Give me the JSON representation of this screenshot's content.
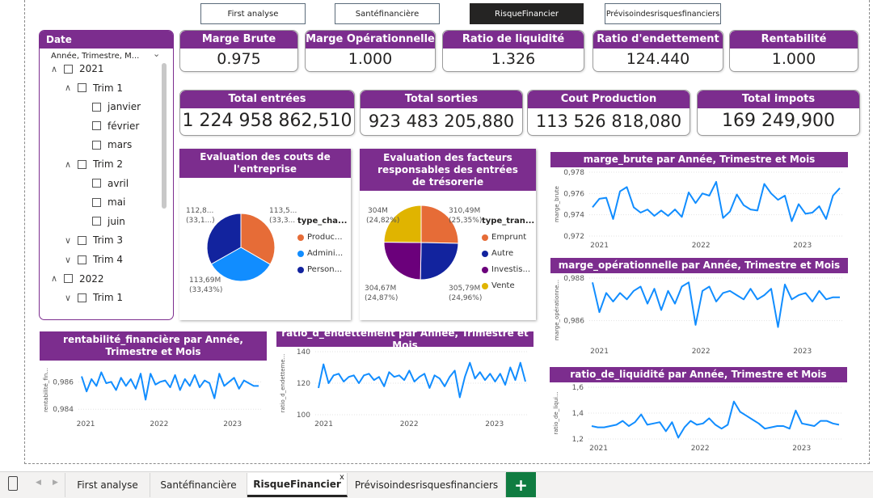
{
  "nav": {
    "buttons": [
      "First analyse",
      "Santéfinancière",
      "RisqueFinancier",
      "Prévisoindesrisquesfinanciers"
    ],
    "active_index": 2
  },
  "slicer": {
    "title": "Date",
    "hierarchy_label": "Année, Trimestre, M...",
    "items": [
      {
        "label": "2021",
        "caret": "^"
      },
      {
        "label": "Trim 1",
        "caret": "^"
      },
      {
        "label": "janvier",
        "caret": ""
      },
      {
        "label": "février",
        "caret": ""
      },
      {
        "label": "mars",
        "caret": ""
      },
      {
        "label": "Trim 2",
        "caret": "^"
      },
      {
        "label": "avril",
        "caret": ""
      },
      {
        "label": "mai",
        "caret": ""
      },
      {
        "label": "juin",
        "caret": ""
      },
      {
        "label": "Trim 3",
        "caret": "v"
      },
      {
        "label": "Trim 4",
        "caret": "v"
      },
      {
        "label": "2022",
        "caret": "^"
      },
      {
        "label": "Trim 1",
        "caret": "v"
      }
    ]
  },
  "kpis_top": [
    {
      "title": "Marge Brute",
      "value": "0.975"
    },
    {
      "title": "Marge Opérationnelle",
      "value": "1.000"
    },
    {
      "title": "Ratio de liquidité",
      "value": "1.326"
    },
    {
      "title": "Ratio d'endettement",
      "value": "124.440"
    },
    {
      "title": "Rentabilité financière",
      "value": "1.000"
    }
  ],
  "kpis_totals": [
    {
      "title": "Total entrées",
      "value": "1 224 958 862,510"
    },
    {
      "title": "Total sorties",
      "value": "923 483 205,880"
    },
    {
      "title": "Cout Production",
      "value": "113 526 818,080"
    },
    {
      "title": "Total impots",
      "value": "169 249,900"
    }
  ],
  "colors": {
    "accent": "#7c2d8e",
    "line": "#118dff",
    "active_tab": "#252423",
    "add_tab": "#107c41"
  },
  "pie1": {
    "title": "Evaluation des couts de l'entreprise",
    "legend_title": "type_cha...",
    "slice_labels": [
      "113,5...",
      "(33,3...",
      "113,69M",
      "(33,43%)",
      "112,8...",
      "(33,1...)"
    ],
    "legend": [
      {
        "label": "Produc...",
        "color": "#e66c37"
      },
      {
        "label": "Admini...",
        "color": "#118dff"
      },
      {
        "label": "Person...",
        "color": "#12239e"
      }
    ]
  },
  "pie2": {
    "title": "Evaluation des facteurs responsables des entrées de trésorerie",
    "legend_title": "type_tran...",
    "slice_labels": [
      "310,49M",
      "(25,35%)",
      "305,79M",
      "(24,96%)",
      "304,67M",
      "(24,87%)",
      "304M",
      "(24,82%)"
    ],
    "legend": [
      {
        "label": "Emprunt",
        "color": "#e66c37"
      },
      {
        "label": "Autre",
        "color": "#12239e"
      },
      {
        "label": "Investis...",
        "color": "#6b007b"
      },
      {
        "label": "Vente",
        "color": "#e0b400"
      }
    ]
  },
  "chart_data": [
    {
      "type": "pie",
      "title": "Evaluation des couts de l'entreprise",
      "legend_title": "type_cha...",
      "categories": [
        "Produc...",
        "Admini...",
        "Person..."
      ],
      "values": [
        113.5,
        113.69,
        112.8
      ],
      "percents": [
        33.3,
        33.43,
        33.1
      ]
    },
    {
      "type": "pie",
      "title": "Evaluation des facteurs responsables des entrées de trésorerie",
      "legend_title": "type_tran...",
      "categories": [
        "Emprunt",
        "Autre",
        "Investis...",
        "Vente"
      ],
      "values": [
        310.49,
        305.79,
        304.67,
        304
      ],
      "percents": [
        25.35,
        24.96,
        24.87,
        24.82
      ]
    },
    {
      "type": "line",
      "title": "marge_brute par Année, Trimestre et Mois",
      "ylabel": "marge_brute",
      "ylim": [
        0.972,
        0.978
      ],
      "yticks": [
        "0,978",
        "0,976",
        "0,974",
        "0,972"
      ],
      "xticks": [
        "2021",
        "2022",
        "2023"
      ],
      "values": [
        0.9747,
        0.9755,
        0.9756,
        0.9736,
        0.9762,
        0.9766,
        0.9747,
        0.9742,
        0.9745,
        0.9739,
        0.9744,
        0.9739,
        0.9745,
        0.9738,
        0.9761,
        0.9751,
        0.976,
        0.9758,
        0.9771,
        0.9737,
        0.9743,
        0.9759,
        0.9749,
        0.9745,
        0.9744,
        0.9769,
        0.976,
        0.9754,
        0.9758,
        0.9734,
        0.975,
        0.9741,
        0.9742,
        0.9748,
        0.9736,
        0.9758,
        0.9765
      ]
    },
    {
      "type": "line",
      "title": "marge_opérationnelle par Année, Trimestre et Mois",
      "ylabel": "marge_opérationne...",
      "ylim": [
        0.985,
        0.988
      ],
      "yticks": [
        "0,988",
        "0,986"
      ],
      "xticks": [
        "2021",
        "2022",
        "2023"
      ],
      "values": [
        0.9878,
        0.9864,
        0.9873,
        0.9869,
        0.9873,
        0.987,
        0.9874,
        0.9876,
        0.9868,
        0.9875,
        0.9865,
        0.9874,
        0.9868,
        0.9876,
        0.9878,
        0.9858,
        0.9874,
        0.9876,
        0.9869,
        0.9873,
        0.9874,
        0.9872,
        0.987,
        0.9875,
        0.987,
        0.9872,
        0.9875,
        0.9857,
        0.9877,
        0.987,
        0.9872,
        0.9873,
        0.9869,
        0.9874,
        0.987,
        0.9871,
        0.9871
      ]
    },
    {
      "type": "line",
      "title": "rentabilité_financière par Année, Trimestre et Mois",
      "ylabel": "rentabilité_fin...",
      "ylim": [
        0.9836,
        0.9872
      ],
      "yticks": [
        "0,986",
        "0,984"
      ],
      "xticks": [
        "2021",
        "2022",
        "2023"
      ],
      "values": [
        0.9864,
        0.9853,
        0.9862,
        0.9857,
        0.9867,
        0.9859,
        0.986,
        0.9854,
        0.9863,
        0.9857,
        0.9862,
        0.9855,
        0.9866,
        0.9847,
        0.9866,
        0.9858,
        0.986,
        0.9861,
        0.9856,
        0.9865,
        0.9854,
        0.9862,
        0.9857,
        0.9865,
        0.9856,
        0.9861,
        0.9859,
        0.9848,
        0.9866,
        0.9857,
        0.986,
        0.9863,
        0.9855,
        0.9861,
        0.9859,
        0.9857,
        0.9857
      ]
    },
    {
      "type": "line",
      "title": "ratio_d_endettement par Année, Trimestre et Mois",
      "ylabel": "ratio_d_endetteme...",
      "ylim": [
        100,
        140
      ],
      "yticks": [
        "140",
        "120",
        "100"
      ],
      "xticks": [
        "2021",
        "2022",
        "2023"
      ],
      "values": [
        117,
        132,
        120,
        125,
        126,
        121,
        124,
        125,
        120,
        125,
        126,
        122,
        124,
        118,
        127,
        124,
        125,
        122,
        128,
        121,
        124,
        126,
        117,
        125,
        123,
        118,
        124,
        128,
        111,
        124,
        133,
        123,
        127,
        122,
        126,
        121,
        126,
        119,
        130,
        122,
        133,
        121
      ]
    },
    {
      "type": "line",
      "title": "ratio_de_liquidité par Année, Trimestre et Mois",
      "ylabel": "ratio_de_liqui...",
      "ylim": [
        1.2,
        1.6
      ],
      "yticks": [
        "1,6",
        "1,4",
        "1,2"
      ],
      "xticks": [
        "2021",
        "2022",
        "2023"
      ],
      "values": [
        1.3,
        1.29,
        1.29,
        1.3,
        1.31,
        1.34,
        1.3,
        1.33,
        1.39,
        1.31,
        1.32,
        1.33,
        1.26,
        1.33,
        1.21,
        1.29,
        1.34,
        1.31,
        1.32,
        1.36,
        1.31,
        1.28,
        1.31,
        1.49,
        1.41,
        1.38,
        1.35,
        1.32,
        1.28,
        1.29,
        1.3,
        1.3,
        1.28,
        1.42,
        1.32,
        1.31,
        1.3,
        1.34,
        1.34,
        1.32,
        1.31
      ]
    }
  ],
  "tabs": {
    "items": [
      "First analyse",
      "Santéfinancière",
      "RisqueFinancier",
      "Prévisoindesrisquesfinanciers"
    ],
    "active_index": 2,
    "close_glyph": "x",
    "add_glyph": "+"
  }
}
